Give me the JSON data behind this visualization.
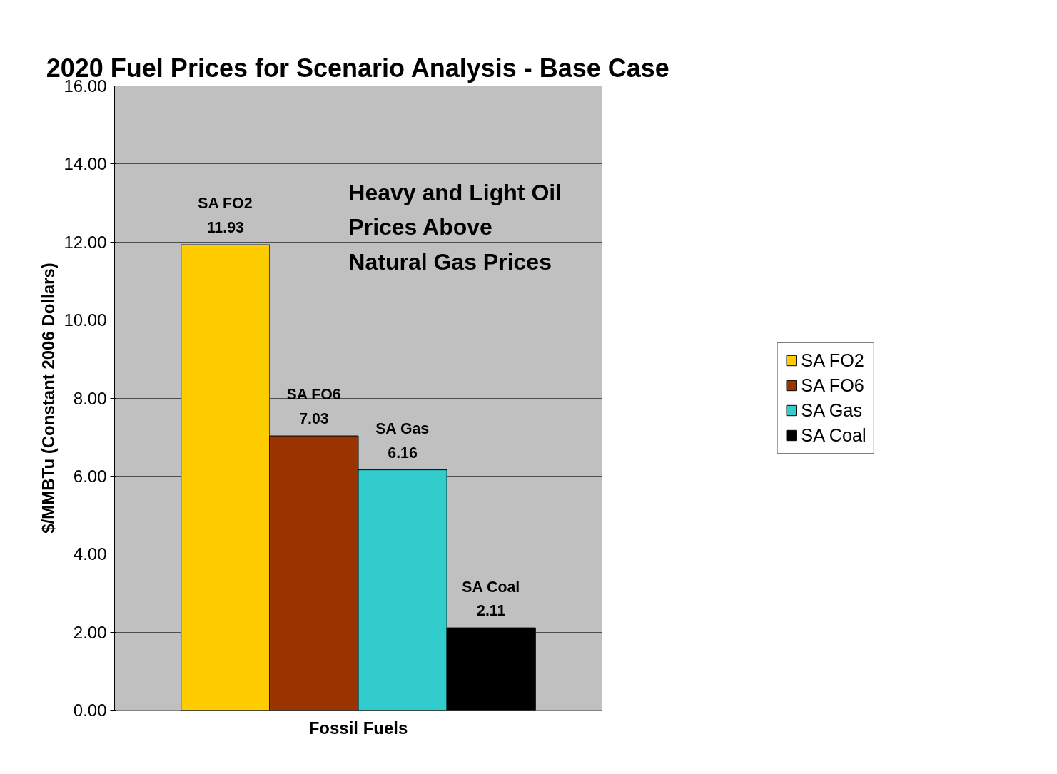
{
  "chart_data": {
    "type": "bar",
    "title": "2020 Fuel Prices for Scenario Analysis - Base Case",
    "xlabel": "Fossil Fuels",
    "ylabel": "$/MMBTu (Constant 2006 Dollars)",
    "categories": [
      null
    ],
    "series": [
      {
        "name": "SA FO2",
        "color": "#ffcc00",
        "values": [
          11.93
        ]
      },
      {
        "name": "SA FO6",
        "color": "#993300",
        "values": [
          7.03
        ]
      },
      {
        "name": "SA Gas",
        "color": "#33cccc",
        "values": [
          6.16
        ]
      },
      {
        "name": "SA Coal",
        "color": "#000000",
        "values": [
          2.11
        ]
      }
    ],
    "ylim": [
      0,
      16
    ],
    "yticks": [
      {
        "value": 0,
        "label": "0.00"
      },
      {
        "value": 2,
        "label": "2.00"
      },
      {
        "value": 4,
        "label": "4.00"
      },
      {
        "value": 6,
        "label": "6.00"
      },
      {
        "value": 8,
        "label": "8.00"
      },
      {
        "value": 10,
        "label": "10.00"
      },
      {
        "value": 12,
        "label": "12.00"
      },
      {
        "value": 14,
        "label": "14.00"
      },
      {
        "value": 16,
        "label": "16.00"
      }
    ],
    "grid": "y",
    "legend": "right",
    "data_labels": true,
    "annotations": [
      "Heavy and Light Oil\nPrices Above\nNatural Gas Prices"
    ]
  }
}
